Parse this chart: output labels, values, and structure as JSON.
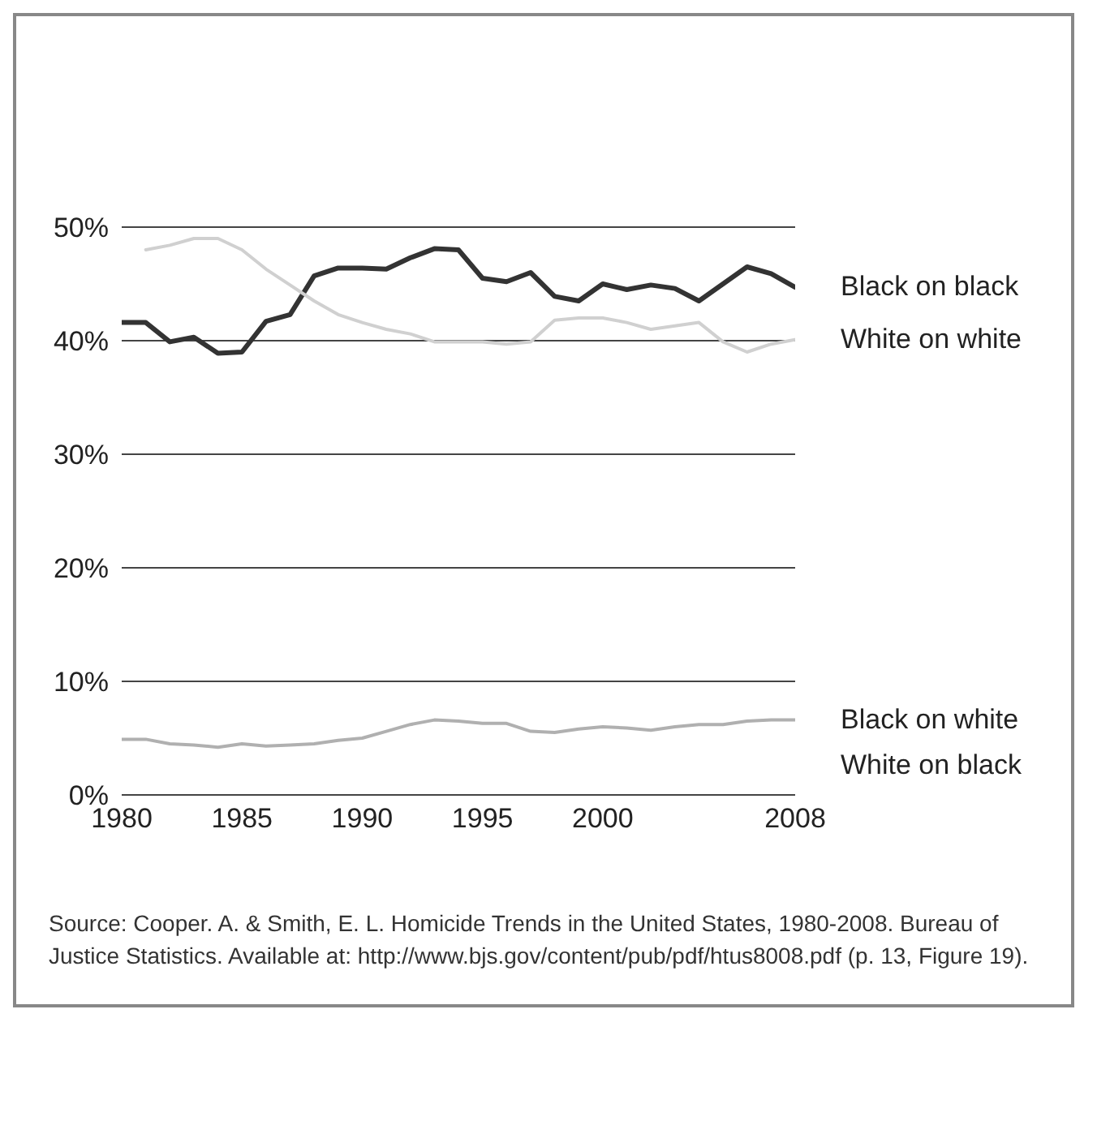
{
  "chart_data": {
    "type": "line",
    "x": [
      1980,
      1981,
      1982,
      1983,
      1984,
      1985,
      1986,
      1987,
      1988,
      1989,
      1990,
      1991,
      1992,
      1993,
      1994,
      1995,
      1996,
      1997,
      1998,
      1999,
      2000,
      2001,
      2002,
      2003,
      2004,
      2005,
      2006,
      2007,
      2008
    ],
    "series": [
      {
        "name": "Black on black",
        "color": "#333333",
        "values": [
          41.6,
          41.6,
          39.9,
          40.3,
          38.9,
          39.0,
          41.7,
          42.3,
          45.7,
          46.4,
          46.4,
          46.3,
          47.3,
          48.1,
          48.0,
          45.5,
          45.2,
          46.0,
          43.9,
          43.5,
          45.0,
          44.5,
          44.9,
          44.6,
          43.5,
          45.0,
          46.5,
          45.9,
          44.7
        ]
      },
      {
        "name": "White on white",
        "color": "#d0d0d0",
        "values": [
          null,
          48.0,
          48.4,
          49.0,
          49.0,
          48.0,
          46.3,
          44.9,
          43.5,
          42.3,
          41.6,
          41.0,
          40.6,
          39.9,
          39.9,
          39.9,
          39.7,
          39.9,
          41.8,
          42.0,
          42.0,
          41.6,
          41.0,
          41.3,
          41.6,
          39.9,
          39.0,
          39.7,
          40.1
        ]
      },
      {
        "name": "Black on white",
        "color": "#b0b0b0",
        "values": [
          4.9,
          4.9,
          4.5,
          4.4,
          4.2,
          4.5,
          4.3,
          4.4,
          4.5,
          4.8,
          5.0,
          5.6,
          6.2,
          6.6,
          6.5,
          6.3,
          6.3,
          5.6,
          5.5,
          5.8,
          6.0,
          5.9,
          5.7,
          6.0,
          6.2,
          6.2,
          6.5,
          6.6,
          6.6
        ]
      }
    ],
    "xlim": [
      1980,
      2008
    ],
    "xticks": [
      1980,
      1985,
      1990,
      1995,
      2000,
      2008
    ],
    "ylim": [
      0,
      50
    ],
    "yticks": [
      {
        "value": 0,
        "label": "0%"
      },
      {
        "value": 10,
        "label": "10%"
      },
      {
        "value": 20,
        "label": "20%"
      },
      {
        "value": 30,
        "label": "30%"
      },
      {
        "value": 40,
        "label": "40%"
      },
      {
        "value": 50,
        "label": "50%"
      }
    ],
    "grid": "y",
    "marker": "none",
    "line_style": "solid",
    "annotations": [
      "White on black",
      "Source: Cooper. A. & Smith, E. L. Homicide Trends in the United States, 1980-2008. Bureau of Justice Statistics. Available at: http://www.bjs.gov/content/pub/pdf/htus8008.pdf (p. 13, Figure 19)."
    ]
  }
}
